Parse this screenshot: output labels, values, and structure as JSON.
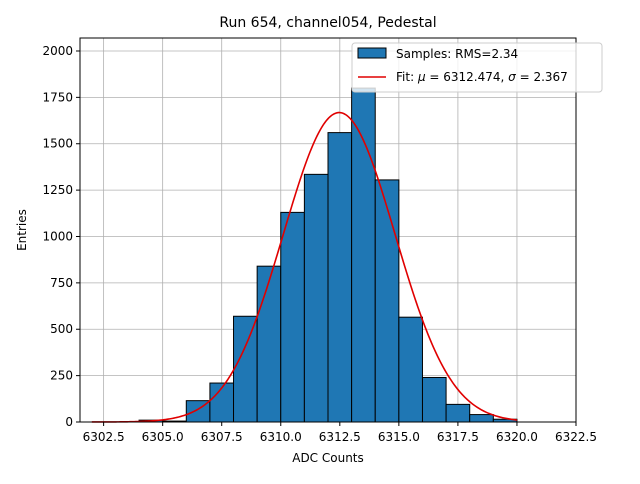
{
  "chart_data": {
    "type": "bar",
    "title": "Run 654, channel054, Pedestal",
    "xlabel": "ADC Counts",
    "ylabel": "Entries",
    "xlim": [
      6301.5,
      6322.5
    ],
    "ylim": [
      0,
      2070
    ],
    "grid": true,
    "legend_position": "top-right",
    "xticks": [
      6302.5,
      6305.0,
      6307.5,
      6310.0,
      6312.5,
      6315.0,
      6317.5,
      6320.0,
      6322.5
    ],
    "xtick_labels": [
      "6302.5",
      "6305.0",
      "6307.5",
      "6310.0",
      "6312.5",
      "6315.0",
      "6317.5",
      "6320.0",
      "6322.5"
    ],
    "yticks": [
      0,
      250,
      500,
      750,
      1000,
      1250,
      1500,
      1750,
      2000
    ],
    "ytick_labels": [
      "0",
      "250",
      "500",
      "750",
      "1000",
      "1250",
      "1500",
      "1750",
      "2000"
    ],
    "histogram": {
      "name": "Samples: RMS=2.34",
      "color": "#1f77b4",
      "edge_color": "#000000",
      "bin_edges": [
        6302,
        6303,
        6304,
        6305,
        6306,
        6307,
        6308,
        6309,
        6310,
        6311,
        6312,
        6313,
        6314,
        6315,
        6316,
        6317,
        6318,
        6319,
        6320,
        6321,
        6322
      ],
      "counts": [
        0,
        0,
        10,
        5,
        115,
        210,
        570,
        840,
        1130,
        1335,
        1560,
        1800,
        1305,
        565,
        240,
        95,
        40,
        15,
        0,
        0
      ]
    },
    "fit": {
      "name_prefix": "Fit: ",
      "mu_symbol": "μ",
      "mu_text": " = 6312.474, ",
      "sigma_symbol": "σ",
      "sigma_text": " = 2.367",
      "color": "#e00000",
      "mu": 6312.474,
      "sigma": 2.367,
      "amplitude": 1668,
      "x_range": [
        6302,
        6320
      ]
    }
  }
}
